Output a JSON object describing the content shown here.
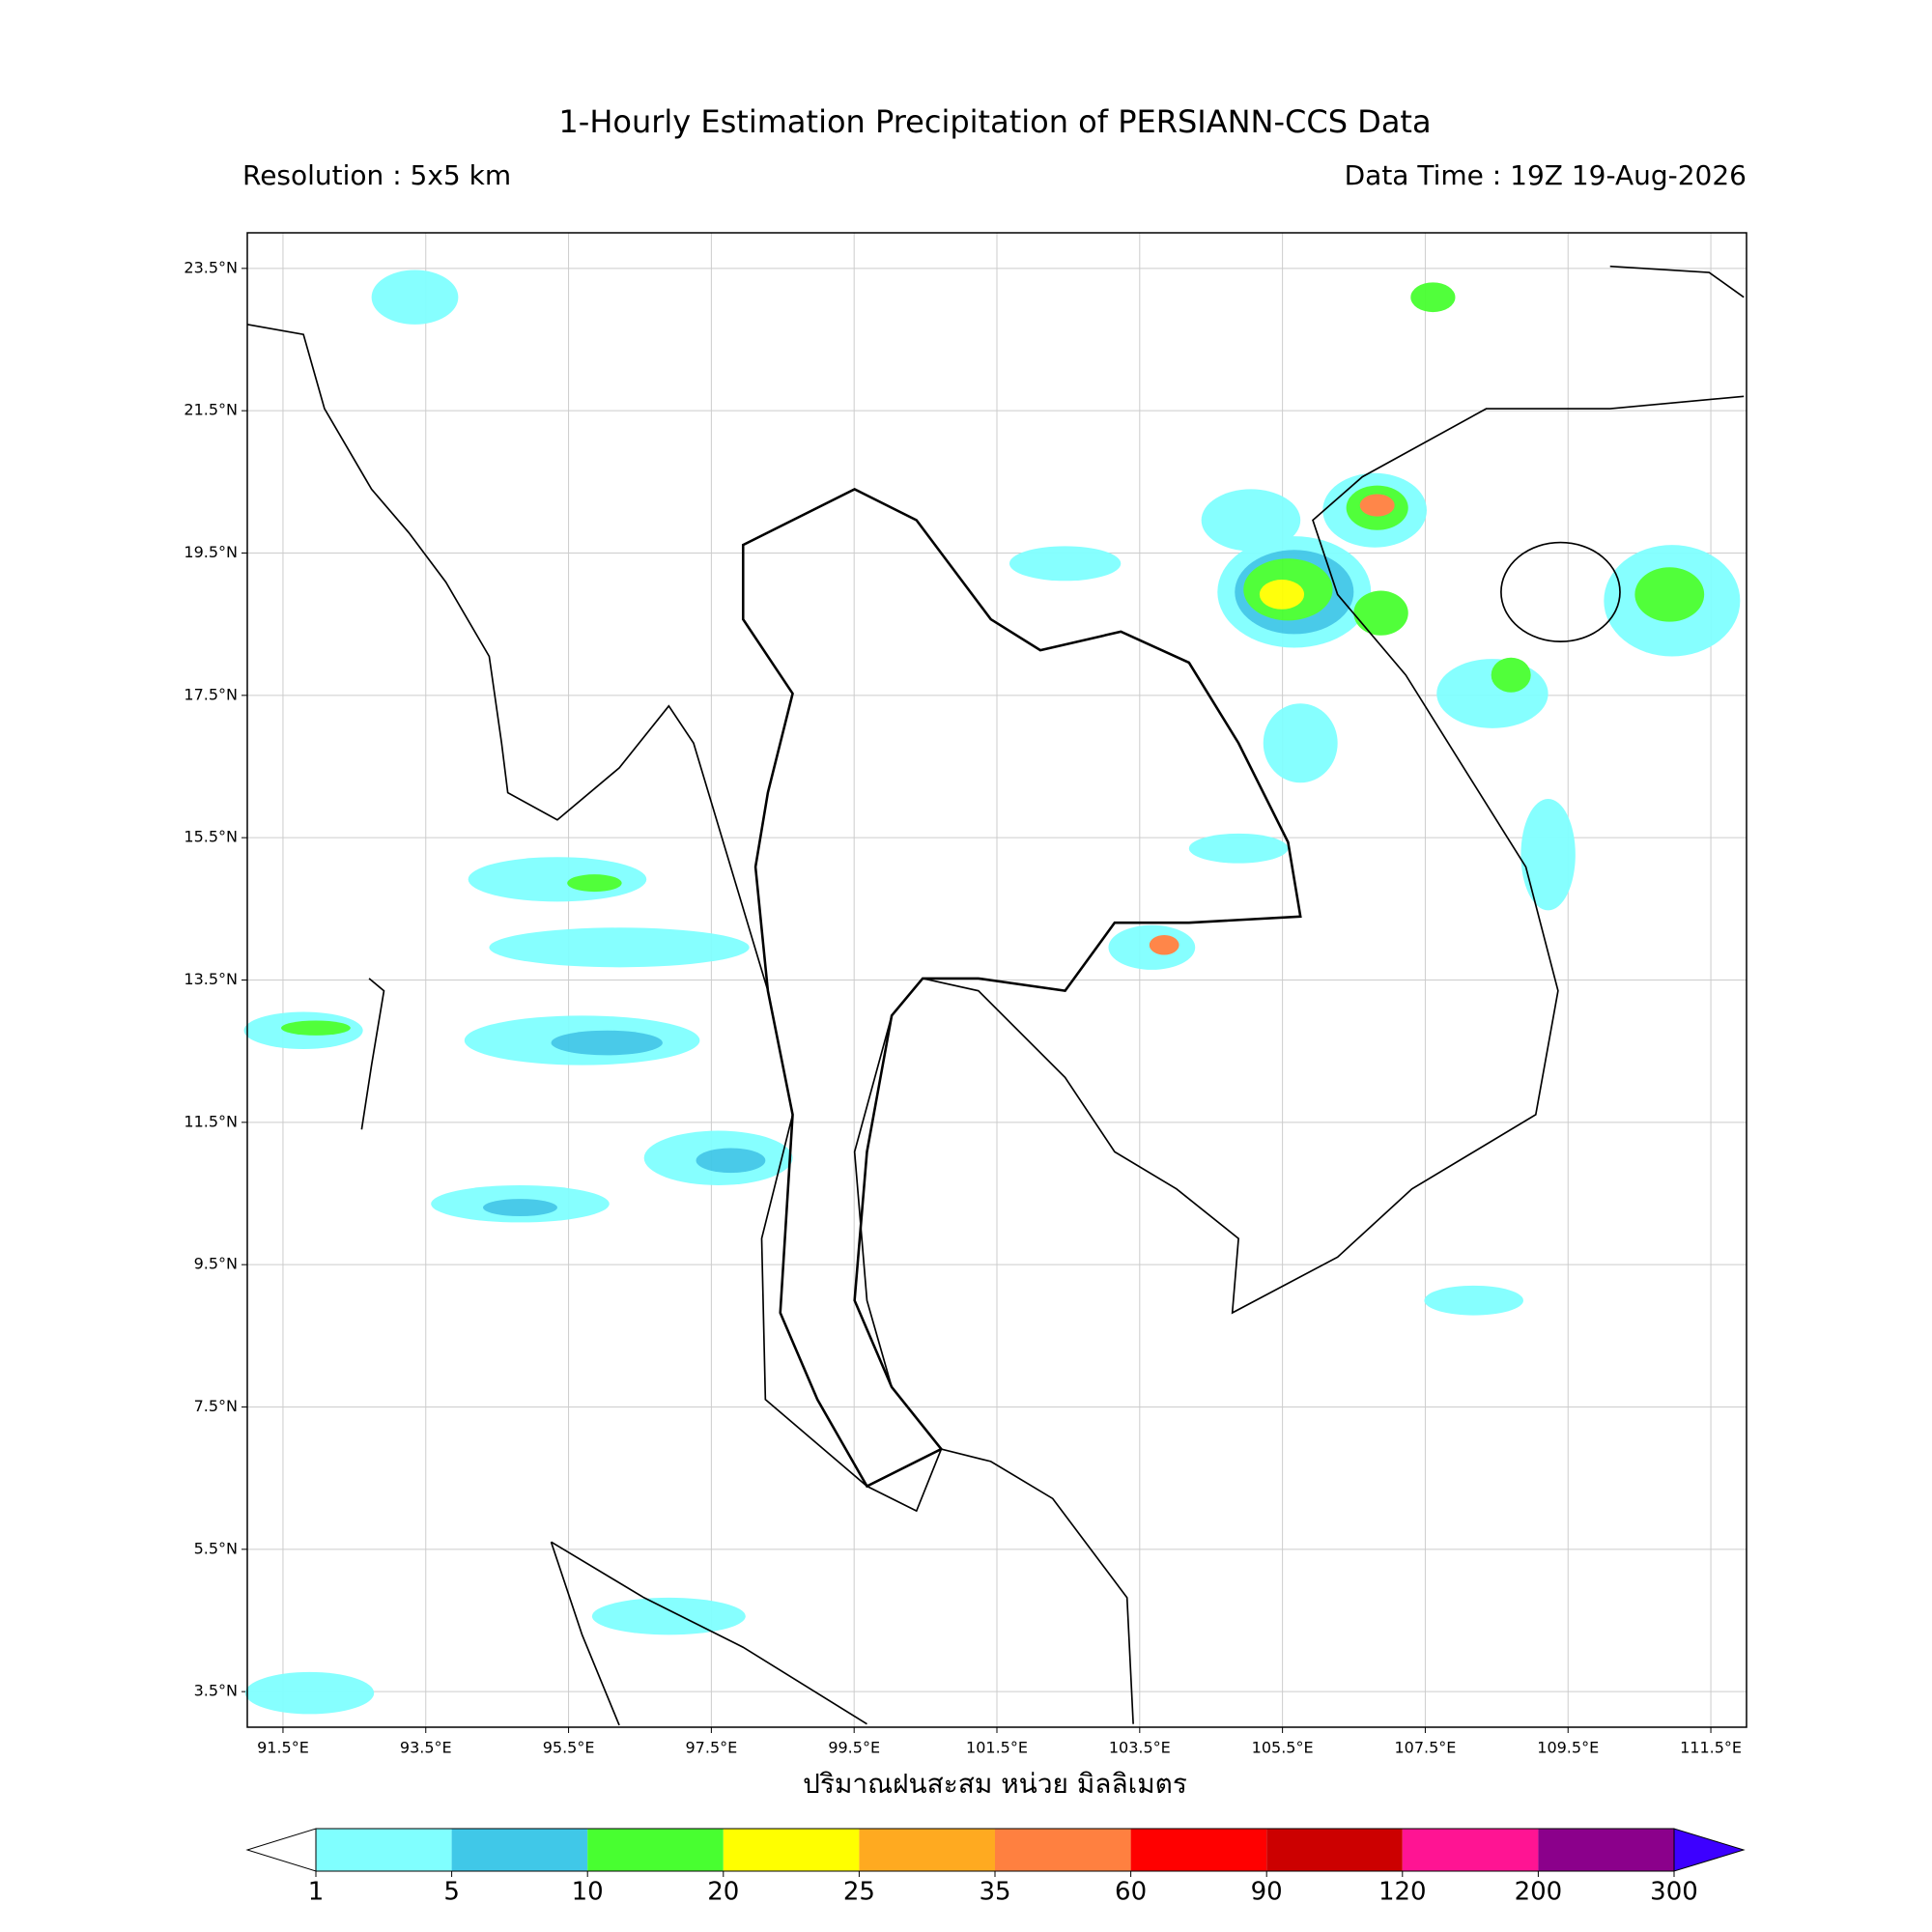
{
  "header": {
    "title": "1-Hourly Estimation Precipitation of PERSIANN-CCS Data",
    "resolution": "Resolution : 5x5 km",
    "data_time": "Data Time : 19Z 19-Aug-2026"
  },
  "map": {
    "lon_range": [
      91,
      112
    ],
    "lat_range": [
      3,
      24
    ],
    "lon_ticks": [
      {
        "value": 91.5,
        "label": "91.5°E"
      },
      {
        "value": 93.5,
        "label": "93.5°E"
      },
      {
        "value": 95.5,
        "label": "95.5°E"
      },
      {
        "value": 97.5,
        "label": "97.5°E"
      },
      {
        "value": 99.5,
        "label": "99.5°E"
      },
      {
        "value": 101.5,
        "label": "101.5°E"
      },
      {
        "value": 103.5,
        "label": "103.5°E"
      },
      {
        "value": 105.5,
        "label": "105.5°E"
      },
      {
        "value": 107.5,
        "label": "107.5°E"
      },
      {
        "value": 109.5,
        "label": "109.5°E"
      },
      {
        "value": 111.5,
        "label": "111.5°E"
      }
    ],
    "lat_ticks": [
      {
        "value": 3.5,
        "label": "3.5°N"
      },
      {
        "value": 5.5,
        "label": "5.5°N"
      },
      {
        "value": 7.5,
        "label": "7.5°N"
      },
      {
        "value": 9.5,
        "label": "9.5°N"
      },
      {
        "value": 11.5,
        "label": "11.5°N"
      },
      {
        "value": 13.5,
        "label": "13.5°N"
      },
      {
        "value": 15.5,
        "label": "15.5°N"
      },
      {
        "value": 17.5,
        "label": "17.5°N"
      },
      {
        "value": 19.5,
        "label": "19.5°N"
      },
      {
        "value": 21.5,
        "label": "21.5°N"
      },
      {
        "value": 23.5,
        "label": "23.5°N"
      }
    ],
    "x_label": "ปริมาณฝนสะสม หน่วย มิลลิเมตร"
  },
  "colorbar": {
    "levels": [
      1,
      5,
      10,
      20,
      25,
      35,
      60,
      90,
      120,
      200,
      300
    ],
    "colors": [
      "#80ffff",
      "#40c8e8",
      "#48ff30",
      "#ffff00",
      "#ffaa20",
      "#ff8040",
      "#ff0000",
      "#cc0000",
      "#ff1493",
      "#8b008b"
    ],
    "under_color": "#ffffff",
    "over_color": "#3d00ff"
  }
}
